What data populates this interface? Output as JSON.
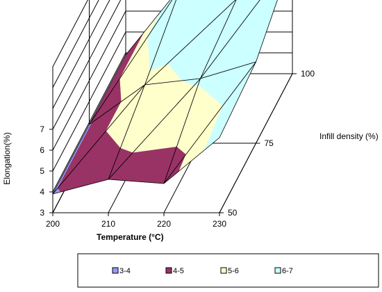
{
  "chart_data": {
    "type": "surface3d",
    "x": {
      "label": "Temperature (°C)",
      "values": [
        200,
        210,
        220,
        230
      ]
    },
    "y": {
      "label": "Infill density (%)",
      "values": [
        50,
        75,
        100
      ]
    },
    "z": {
      "label": "Elongation(%)",
      "ticks": [
        3,
        4,
        5,
        6,
        7
      ],
      "range": [
        3,
        10
      ]
    },
    "surface": [
      [
        3.9,
        4.6,
        4.4,
        6.6
      ],
      [
        3.9,
        5.8,
        6.1,
        6.9
      ],
      [
        3.9,
        7.2,
        6.6,
        8.6
      ]
    ],
    "bands": [
      {
        "label": "3-4",
        "range": [
          3,
          4
        ],
        "color": "#9999ff"
      },
      {
        "label": "4-5",
        "range": [
          4,
          5
        ],
        "color": "#993366"
      },
      {
        "label": "5-6",
        "range": [
          5,
          6
        ],
        "color": "#ffffcc"
      },
      {
        "label": "6-7",
        "range": [
          6,
          7
        ],
        "color": "#ccffff"
      }
    ],
    "legend_position": "bottom",
    "grid": true
  }
}
